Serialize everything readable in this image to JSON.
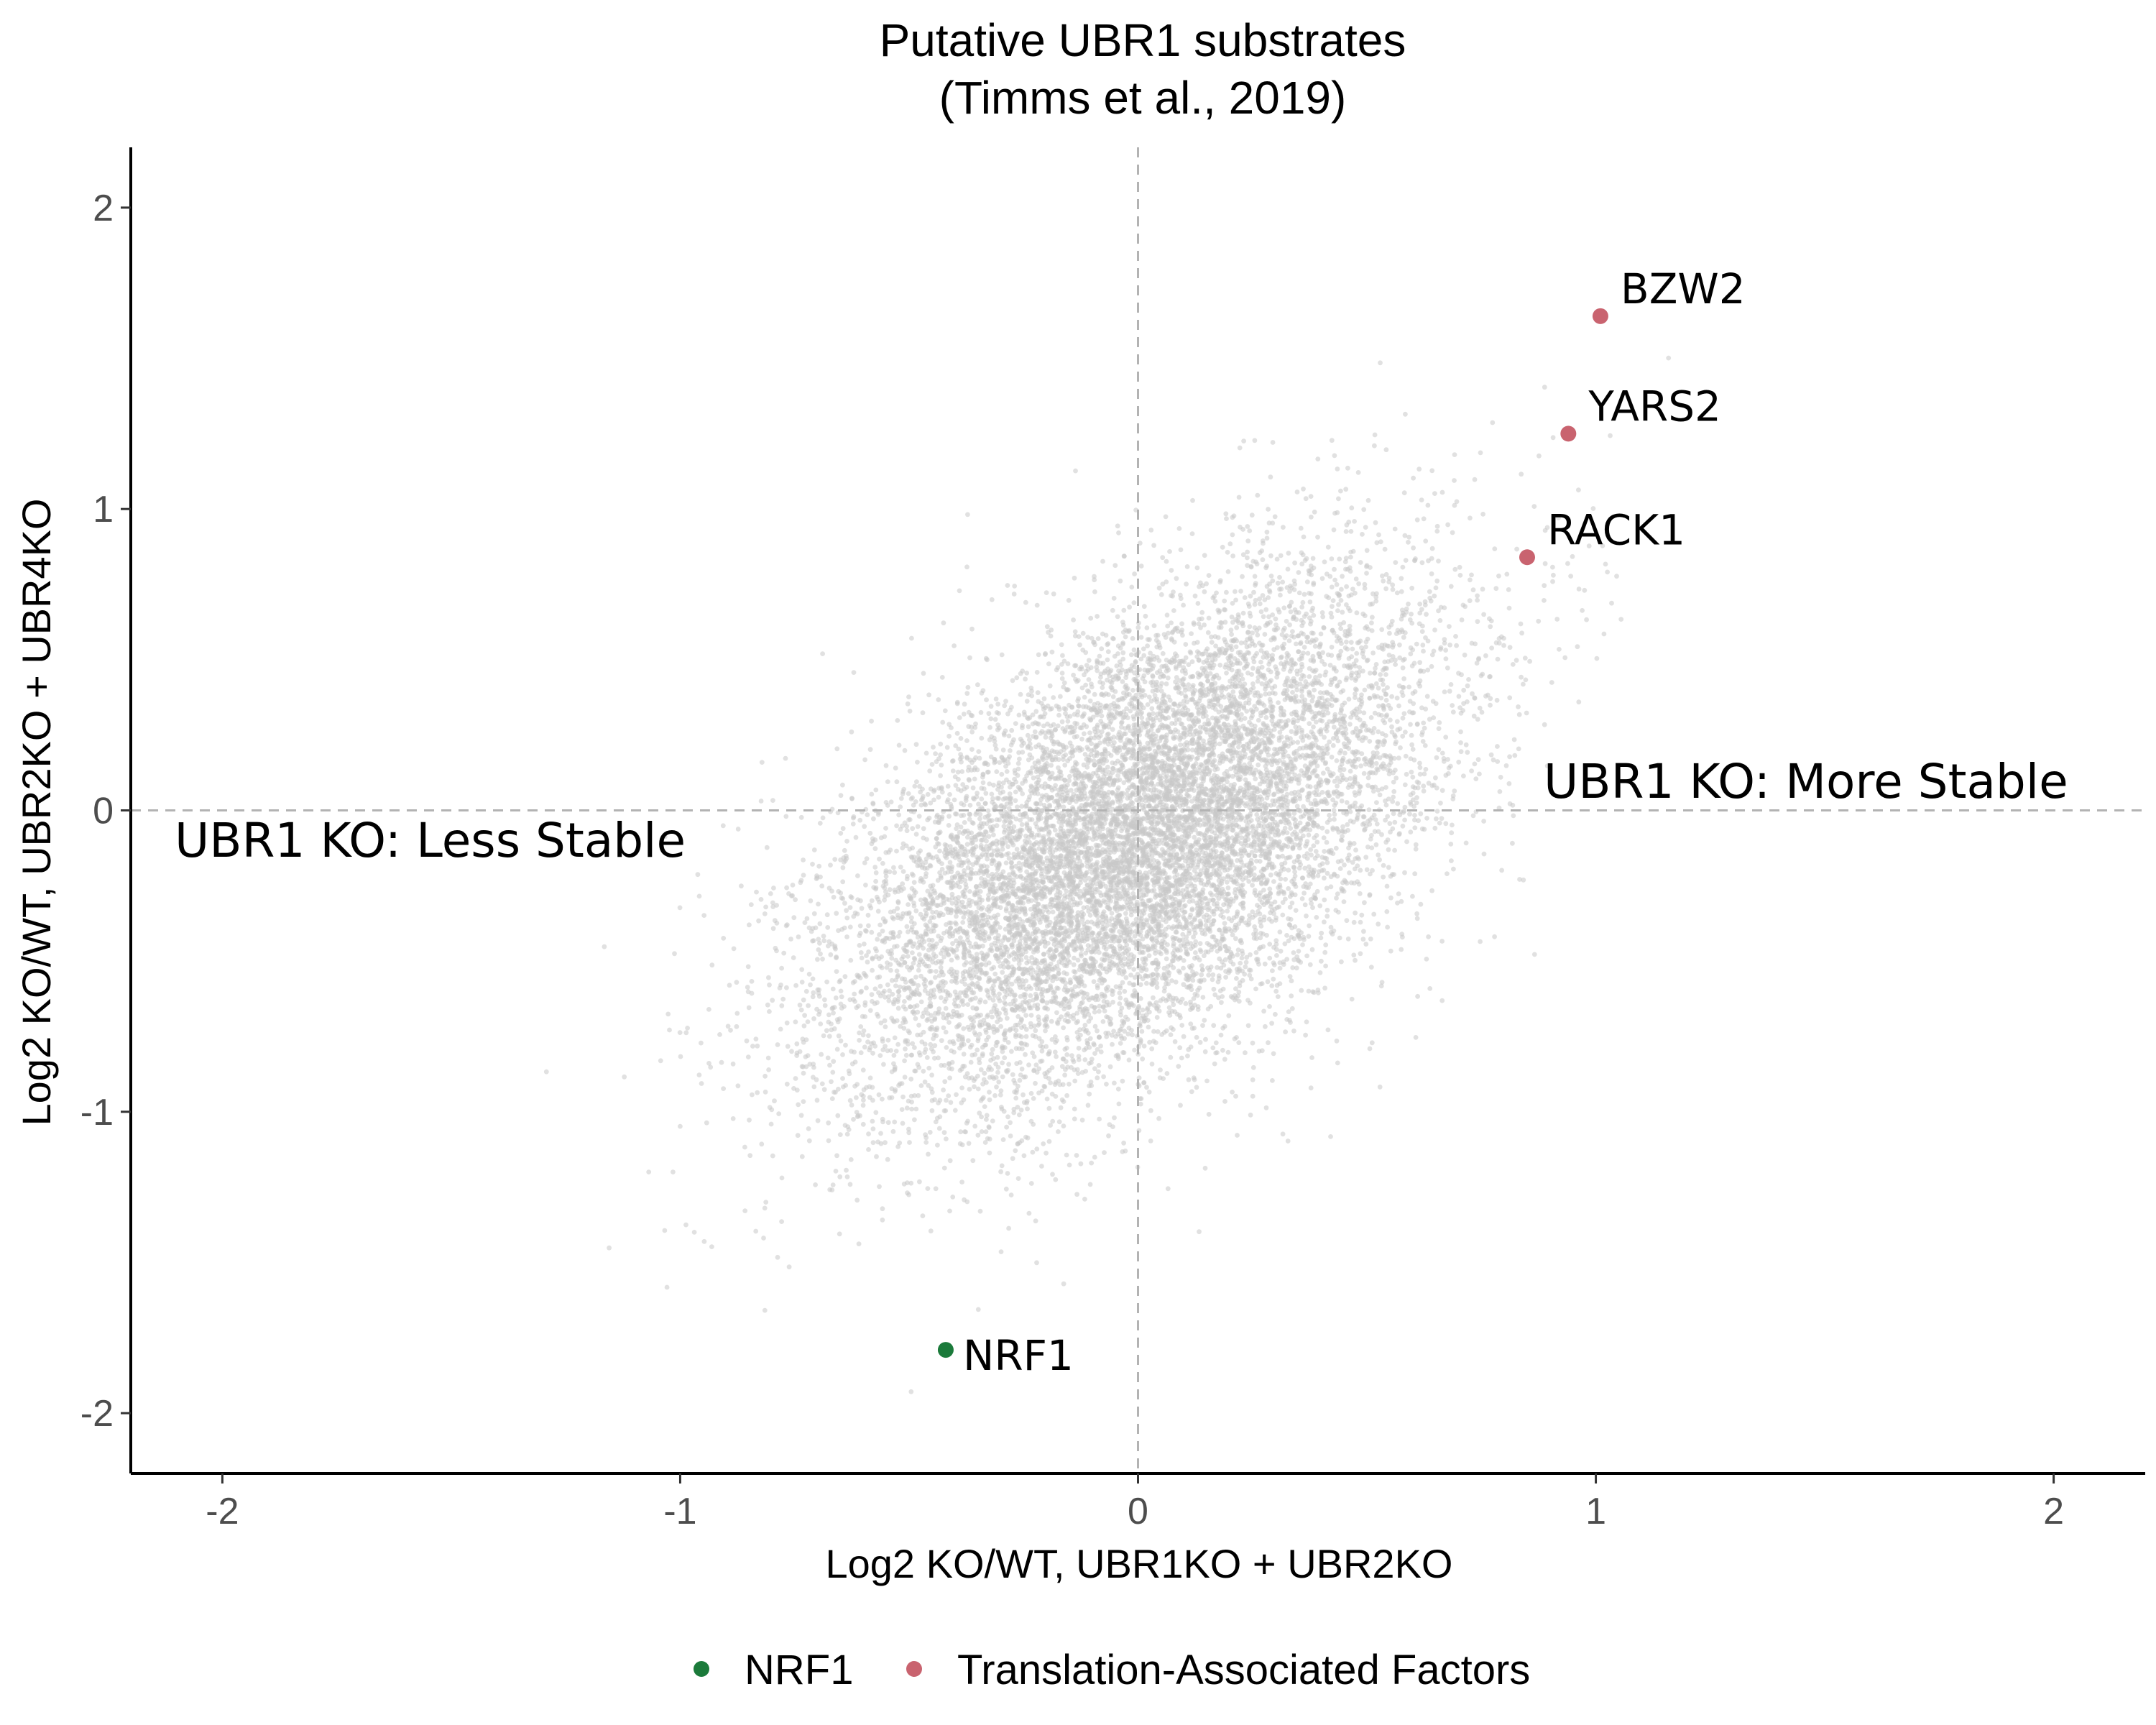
{
  "chart_data": {
    "type": "scatter",
    "title": "Putative UBR1 substrates",
    "subtitle": "(Timms et al., 2019)",
    "xlabel": "Log2 KO/WT, UBR1KO + UBR2KO",
    "ylabel": "Log2 KO/WT, UBR2KO + UBR4KO",
    "xlim": [
      -2.2,
      2.2
    ],
    "ylim": [
      -2.2,
      2.2
    ],
    "xticks": [
      -2,
      -1,
      0,
      1,
      2
    ],
    "xtick_labels": [
      "-2",
      "-1",
      "0",
      "1",
      "2"
    ],
    "yticks": [
      -2,
      -1,
      0,
      1,
      2
    ],
    "ytick_labels": [
      "-2",
      "-1",
      "0",
      "1",
      "2"
    ],
    "grid": false,
    "reference_lines": {
      "x": 0,
      "y": 0,
      "style": "dashed"
    },
    "background_points": {
      "color": "#c8c8c8",
      "approx_count": 12000,
      "center": [
        0.0,
        -0.1
      ],
      "trend": "positive correlation between x and y",
      "x_range": [
        -1.95,
        1.8
      ],
      "y_range": [
        -1.98,
        1.9
      ],
      "x_sd": 0.32,
      "y_sd": 0.42,
      "correlation": 0.55
    },
    "highlighted_points": [
      {
        "label": "BZW2",
        "x": 1.01,
        "y": 1.64,
        "group": "Translation-Associated Factors"
      },
      {
        "label": "YARS2",
        "x": 0.94,
        "y": 1.25,
        "group": "Translation-Associated Factors"
      },
      {
        "label": "RACK1",
        "x": 0.85,
        "y": 0.84,
        "group": "Translation-Associated Factors"
      },
      {
        "label": "NRF1",
        "x": -0.42,
        "y": -1.79,
        "group": "NRF1"
      }
    ],
    "annotations": [
      {
        "text": "UBR1 KO: More Stable"
      },
      {
        "text": "UBR1 KO: Less Stable"
      }
    ],
    "legend": {
      "position": "bottom",
      "entries": [
        {
          "label": "NRF1",
          "color": "#1b7a3a"
        },
        {
          "label": "Translation-Associated Factors",
          "color": "#c9636f"
        }
      ]
    }
  }
}
